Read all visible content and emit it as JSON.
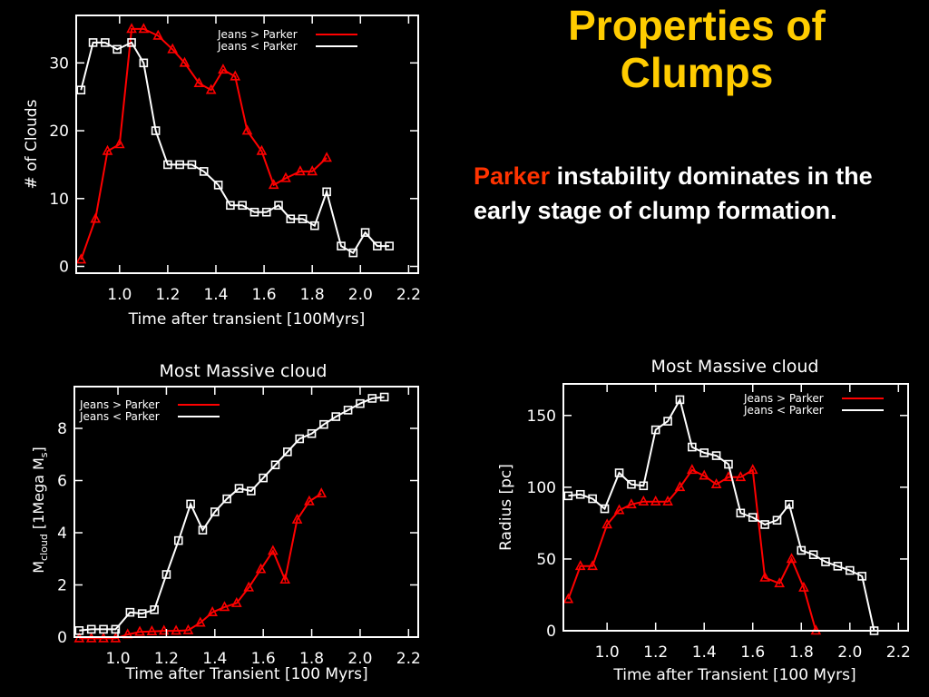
{
  "slide": {
    "title_line1": "Properties of",
    "title_line2": "Clumps",
    "highlight": "Parker",
    "body": " instability dominates in the early stage of clump formation."
  },
  "colors": {
    "title": "#FFCC00",
    "highlight": "#FF3300",
    "red": "#FF0000",
    "white": "#FFFFFF"
  },
  "chart_data": [
    {
      "type": "line",
      "title": "",
      "xlabel": "Time after transient [100Myrs]",
      "ylabel": "# of Clouds",
      "xlim": [
        0.82,
        2.24
      ],
      "ylim": [
        -1,
        37
      ],
      "xticks": [
        1.0,
        1.2,
        1.4,
        1.6,
        1.8,
        2.0,
        2.2
      ],
      "xtick_labels": [
        "1.0",
        "1.2",
        "1.4",
        "1.6",
        "1.8",
        "2.0",
        "2.2"
      ],
      "yticks": [
        0,
        10,
        20,
        30
      ],
      "ytick_labels": [
        "0",
        "10",
        "20",
        "30"
      ],
      "legend_position": "top-right",
      "series": [
        {
          "name": "Jeans > Parker",
          "color": "#FF0000",
          "marker": "triangle",
          "x": [
            0.84,
            0.9,
            0.95,
            1.0,
            1.05,
            1.1,
            1.16,
            1.22,
            1.27,
            1.33,
            1.38,
            1.43,
            1.48,
            1.53,
            1.59,
            1.64,
            1.69,
            1.75,
            1.8,
            1.86
          ],
          "y": [
            1,
            7,
            17,
            18,
            35,
            35,
            34,
            32,
            30,
            27,
            26,
            29,
            28,
            20,
            17,
            12,
            13,
            14,
            14,
            16
          ]
        },
        {
          "name": "Jeans < Parker",
          "color": "#FFFFFF",
          "marker": "square",
          "x": [
            0.84,
            0.89,
            0.94,
            0.99,
            1.05,
            1.1,
            1.15,
            1.2,
            1.25,
            1.3,
            1.35,
            1.41,
            1.46,
            1.51,
            1.56,
            1.61,
            1.66,
            1.71,
            1.76,
            1.81,
            1.86,
            1.92,
            1.97,
            2.02,
            2.07,
            2.12
          ],
          "y": [
            26,
            33,
            33,
            32,
            33,
            30,
            20,
            15,
            15,
            15,
            14,
            12,
            9,
            9,
            8,
            8,
            9,
            7,
            7,
            6,
            11,
            3,
            2,
            5,
            3,
            3
          ]
        }
      ]
    },
    {
      "type": "line",
      "title": "Most Massive cloud",
      "xlabel": "Time after Transient [100 Myrs]",
      "ylabel_main": "M",
      "ylabel_sub": "cloud",
      "ylabel_rest": " [1Mega M",
      "ylabel_sub2": "s",
      "ylabel_end": "]",
      "xlim": [
        0.82,
        2.24
      ],
      "ylim": [
        0,
        9.6
      ],
      "xticks": [
        1.0,
        1.2,
        1.4,
        1.6,
        1.8,
        2.0,
        2.2
      ],
      "xtick_labels": [
        "1.0",
        "1.2",
        "1.4",
        "1.6",
        "1.8",
        "2.0",
        "2.2"
      ],
      "yticks": [
        0,
        2,
        4,
        6,
        8
      ],
      "ytick_labels": [
        "0",
        "2",
        "4",
        "6",
        "8"
      ],
      "legend_position": "top-left",
      "series": [
        {
          "name": "Jeans > Parker",
          "color": "#FF0000",
          "marker": "triangle",
          "x": [
            0.84,
            0.89,
            0.94,
            0.99,
            1.04,
            1.09,
            1.14,
            1.19,
            1.24,
            1.29,
            1.34,
            1.39,
            1.44,
            1.49,
            1.54,
            1.59,
            1.64,
            1.69,
            1.74,
            1.79,
            1.84
          ],
          "y": [
            -0.05,
            -0.05,
            -0.05,
            -0.05,
            0.1,
            0.2,
            0.22,
            0.24,
            0.24,
            0.26,
            0.55,
            0.95,
            1.15,
            1.3,
            1.9,
            2.6,
            3.3,
            2.2,
            4.5,
            5.2,
            5.5
          ]
        },
        {
          "name": "Jeans < Parker",
          "color": "#FFFFFF",
          "marker": "square",
          "x": [
            0.84,
            0.89,
            0.94,
            0.99,
            1.05,
            1.1,
            1.15,
            1.2,
            1.25,
            1.3,
            1.35,
            1.4,
            1.45,
            1.5,
            1.55,
            1.6,
            1.65,
            1.7,
            1.75,
            1.8,
            1.85,
            1.9,
            1.95,
            2.0,
            2.05,
            2.1
          ],
          "y": [
            0.25,
            0.3,
            0.3,
            0.3,
            0.95,
            0.9,
            1.05,
            2.4,
            3.7,
            5.1,
            4.1,
            4.8,
            5.3,
            5.7,
            5.6,
            6.1,
            6.6,
            7.1,
            7.6,
            7.8,
            8.15,
            8.45,
            8.7,
            8.95,
            9.15,
            9.2
          ]
        }
      ]
    },
    {
      "type": "line",
      "title": "Most Massive cloud",
      "xlabel": "Time after Transient [100 Myrs]",
      "ylabel": "Radius [pc]",
      "xlim": [
        0.82,
        2.24
      ],
      "ylim": [
        0,
        172
      ],
      "xticks": [
        1.0,
        1.2,
        1.4,
        1.6,
        1.8,
        2.0,
        2.2
      ],
      "xtick_labels": [
        "1.0",
        "1.2",
        "1.4",
        "1.6",
        "1.8",
        "2.0",
        "2.2"
      ],
      "yticks": [
        0,
        50,
        100,
        150
      ],
      "ytick_labels": [
        "0",
        "50",
        "100",
        "150"
      ],
      "legend_position": "top-right",
      "series": [
        {
          "name": "Jeans > Parker",
          "color": "#FF0000",
          "marker": "triangle",
          "x": [
            0.84,
            0.89,
            0.94,
            1.0,
            1.05,
            1.1,
            1.15,
            1.2,
            1.25,
            1.3,
            1.35,
            1.4,
            1.45,
            1.5,
            1.55,
            1.6,
            1.65,
            1.71,
            1.76,
            1.81,
            1.86
          ],
          "y": [
            22,
            45,
            45,
            74,
            84,
            88,
            90,
            90,
            90,
            100,
            112,
            108,
            102,
            107,
            107,
            112,
            37,
            33,
            50,
            30,
            0
          ]
        },
        {
          "name": "Jeans < Parker",
          "color": "#FFFFFF",
          "marker": "square",
          "x": [
            0.84,
            0.89,
            0.94,
            0.99,
            1.05,
            1.1,
            1.15,
            1.2,
            1.25,
            1.3,
            1.35,
            1.4,
            1.45,
            1.5,
            1.55,
            1.6,
            1.65,
            1.7,
            1.75,
            1.8,
            1.85,
            1.9,
            1.95,
            2.0,
            2.05,
            2.1
          ],
          "y": [
            94,
            95,
            92,
            85,
            110,
            102,
            101,
            140,
            146,
            161,
            128,
            124,
            122,
            116,
            82,
            79,
            74,
            77,
            88,
            56,
            53,
            48,
            45,
            42,
            38,
            0
          ]
        }
      ]
    }
  ]
}
